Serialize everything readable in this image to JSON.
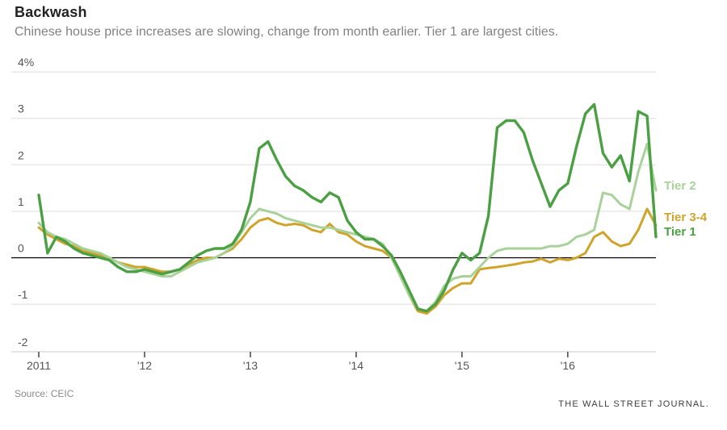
{
  "header": {
    "title": "Backwash",
    "subtitle": "Chinese house price increases are slowing, change from month earlier. Tier 1 are largest cities."
  },
  "footer": {
    "source": "Source: CEIC",
    "credit": "THE WALL STREET JOURNAL."
  },
  "chart_data": {
    "type": "line",
    "title": "Backwash",
    "subtitle": "Chinese house price increases are slowing, change from month earlier. Tier 1 are largest cities.",
    "y_unit": "%",
    "ylim": [
      -2,
      4
    ],
    "grid": true,
    "zero_line": true,
    "legend_position": "right of line ends",
    "y_ticks": [
      {
        "value": 4,
        "label": "4%"
      },
      {
        "value": 3,
        "label": "3"
      },
      {
        "value": 2,
        "label": "2"
      },
      {
        "value": 1,
        "label": "1"
      },
      {
        "value": 0,
        "label": "0"
      },
      {
        "value": -1,
        "label": "-1"
      },
      {
        "value": -2,
        "label": "-2"
      }
    ],
    "x_ticks": [
      {
        "month": "2011-01",
        "label": "2011"
      },
      {
        "month": "2012-01",
        "label": "'12"
      },
      {
        "month": "2013-01",
        "label": "'13"
      },
      {
        "month": "2014-01",
        "label": "'14"
      },
      {
        "month": "2015-01",
        "label": "'15"
      },
      {
        "month": "2016-01",
        "label": "'16"
      }
    ],
    "x_months": [
      "2011-01",
      "2011-02",
      "2011-03",
      "2011-04",
      "2011-05",
      "2011-06",
      "2011-07",
      "2011-08",
      "2011-09",
      "2011-10",
      "2011-11",
      "2011-12",
      "2012-01",
      "2012-02",
      "2012-03",
      "2012-04",
      "2012-05",
      "2012-06",
      "2012-07",
      "2012-08",
      "2012-09",
      "2012-10",
      "2012-11",
      "2012-12",
      "2013-01",
      "2013-02",
      "2013-03",
      "2013-04",
      "2013-05",
      "2013-06",
      "2013-07",
      "2013-08",
      "2013-09",
      "2013-10",
      "2013-11",
      "2013-12",
      "2014-01",
      "2014-02",
      "2014-03",
      "2014-04",
      "2014-05",
      "2014-06",
      "2014-07",
      "2014-08",
      "2014-09",
      "2014-10",
      "2014-11",
      "2014-12",
      "2015-01",
      "2015-02",
      "2015-03",
      "2015-04",
      "2015-05",
      "2015-06",
      "2015-07",
      "2015-08",
      "2015-09",
      "2015-10",
      "2015-11",
      "2015-12",
      "2016-01",
      "2016-02",
      "2016-03",
      "2016-04",
      "2016-05",
      "2016-06",
      "2016-07",
      "2016-08",
      "2016-09",
      "2016-10",
      "2016-11"
    ],
    "series": [
      {
        "name": "Tier 1",
        "color": "#4BA044",
        "values": [
          1.35,
          0.1,
          0.45,
          0.35,
          0.2,
          0.1,
          0.05,
          0,
          -0.05,
          -0.2,
          -0.3,
          -0.3,
          -0.25,
          -0.3,
          -0.35,
          -0.3,
          -0.25,
          -0.1,
          0.05,
          0.15,
          0.2,
          0.2,
          0.3,
          0.6,
          1.2,
          2.35,
          2.5,
          2.1,
          1.75,
          1.55,
          1.45,
          1.3,
          1.2,
          1.4,
          1.3,
          0.8,
          0.55,
          0.4,
          0.4,
          0.25,
          0.05,
          -0.3,
          -0.7,
          -1.1,
          -1.15,
          -1.0,
          -0.7,
          -0.25,
          0.1,
          -0.05,
          0.1,
          0.9,
          2.8,
          2.95,
          2.95,
          2.7,
          2.1,
          1.6,
          1.1,
          1.45,
          1.6,
          2.4,
          3.1,
          3.3,
          2.25,
          1.95,
          2.2,
          1.65,
          3.15,
          3.05,
          0.45
        ]
      },
      {
        "name": "Tier 2",
        "color": "#A9D29B",
        "values": [
          0.75,
          0.55,
          0.45,
          0.4,
          0.3,
          0.2,
          0.15,
          0.1,
          0,
          -0.1,
          -0.2,
          -0.25,
          -0.3,
          -0.35,
          -0.4,
          -0.4,
          -0.3,
          -0.2,
          -0.1,
          -0.05,
          0,
          0.1,
          0.25,
          0.55,
          0.85,
          1.05,
          1.0,
          0.95,
          0.85,
          0.8,
          0.75,
          0.7,
          0.65,
          0.65,
          0.6,
          0.55,
          0.5,
          0.45,
          0.4,
          0.3,
          0,
          -0.4,
          -0.8,
          -1.1,
          -1.15,
          -0.95,
          -0.6,
          -0.45,
          -0.4,
          -0.4,
          -0.2,
          0,
          0.15,
          0.2,
          0.2,
          0.2,
          0.2,
          0.2,
          0.25,
          0.25,
          0.3,
          0.45,
          0.5,
          0.6,
          1.4,
          1.35,
          1.15,
          1.05,
          1.85,
          2.45,
          1.45
        ]
      },
      {
        "name": "Tier 3-4",
        "color": "#D0A42A",
        "values": [
          0.65,
          0.5,
          0.4,
          0.3,
          0.25,
          0.15,
          0.1,
          0.05,
          0,
          -0.1,
          -0.15,
          -0.2,
          -0.2,
          -0.25,
          -0.3,
          -0.3,
          -0.25,
          -0.15,
          -0.05,
          0,
          0,
          0.1,
          0.2,
          0.4,
          0.65,
          0.8,
          0.85,
          0.75,
          0.7,
          0.73,
          0.7,
          0.6,
          0.55,
          0.73,
          0.55,
          0.5,
          0.35,
          0.25,
          0.2,
          0.15,
          0,
          -0.35,
          -0.8,
          -1.15,
          -1.2,
          -1.05,
          -0.8,
          -0.65,
          -0.55,
          -0.55,
          -0.25,
          -0.22,
          -0.2,
          -0.17,
          -0.14,
          -0.1,
          -0.08,
          -0.02,
          -0.1,
          -0.02,
          -0.05,
          0,
          0.1,
          0.45,
          0.55,
          0.35,
          0.25,
          0.3,
          0.6,
          1.05,
          0.7
        ]
      }
    ]
  }
}
